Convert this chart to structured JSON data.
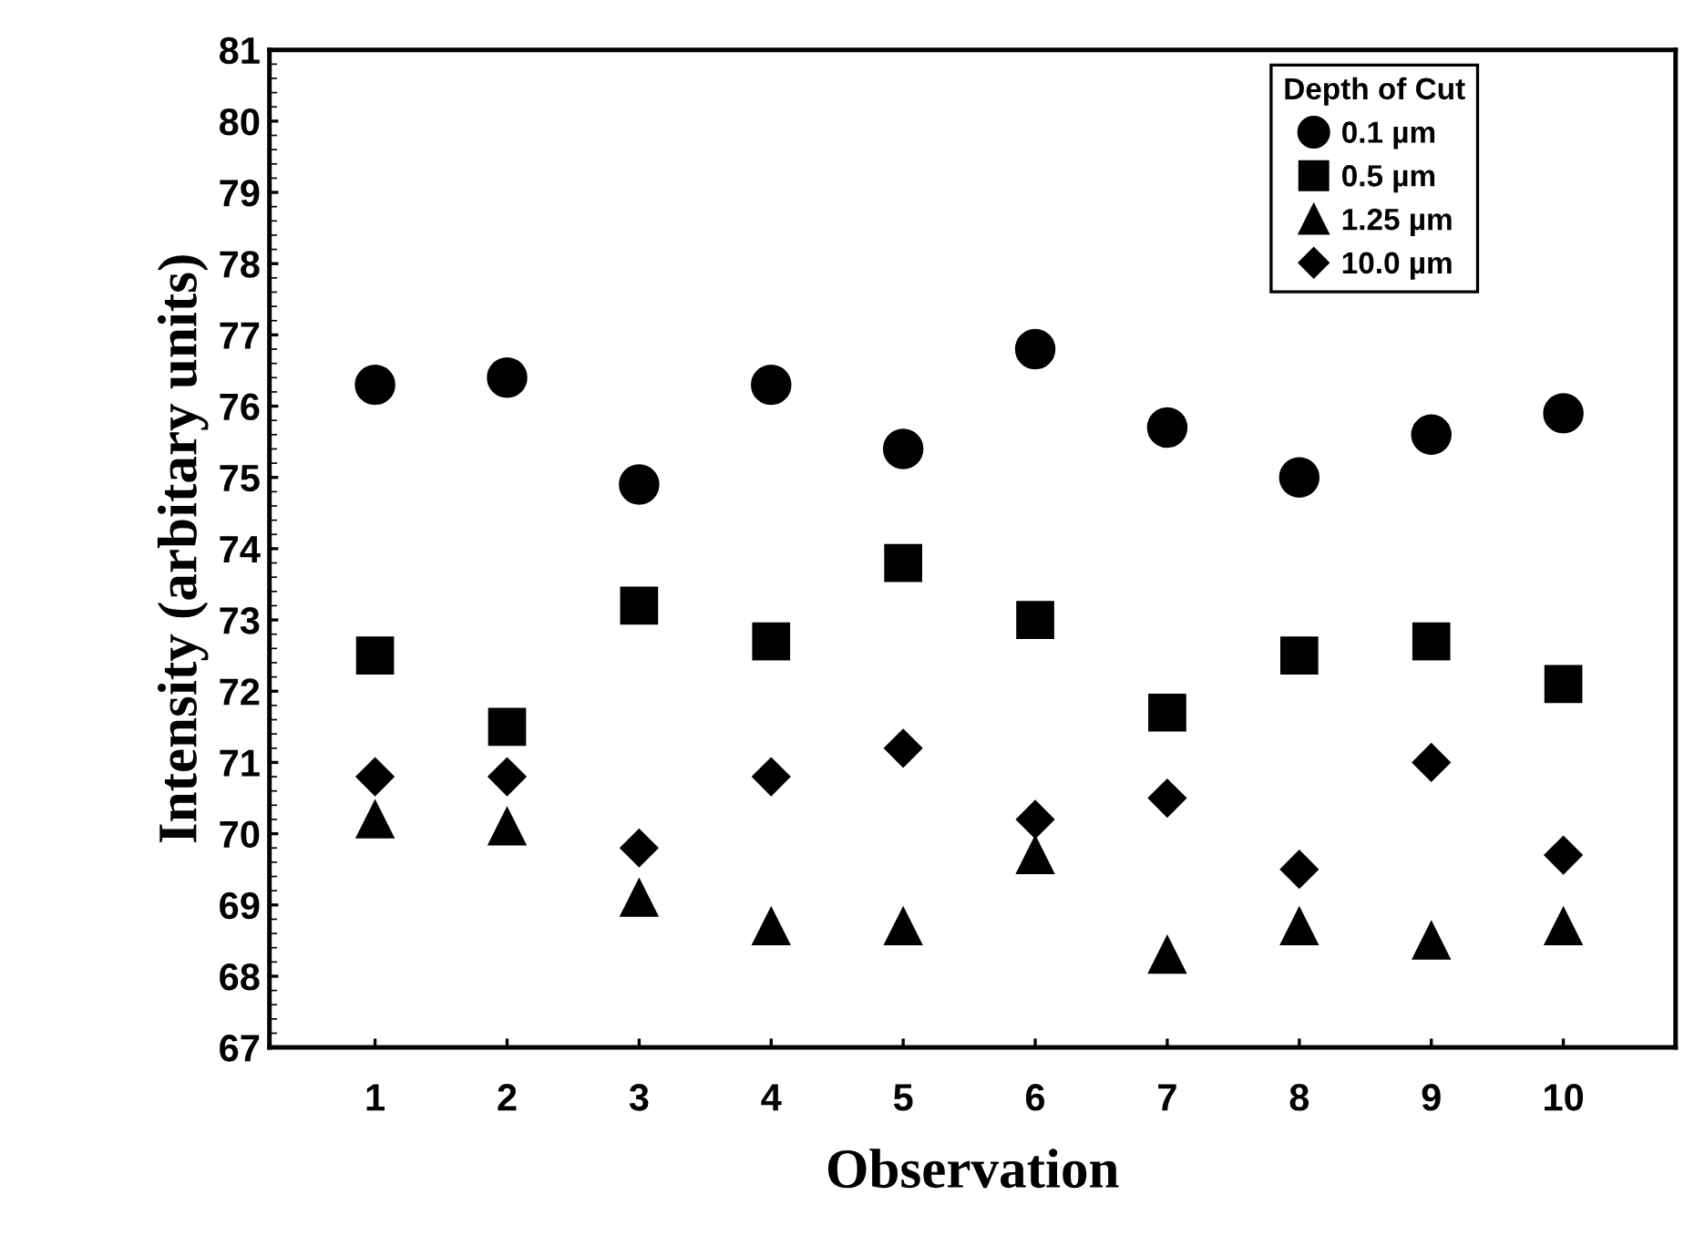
{
  "chart_data": {
    "type": "scatter",
    "xlabel": "Observation",
    "ylabel": "Intensity (arbitary units)",
    "legend_title": "Depth of Cut",
    "x": [
      1,
      2,
      3,
      4,
      5,
      6,
      7,
      8,
      9,
      10
    ],
    "xlim": [
      0.2,
      10.85
    ],
    "xticks": [
      1,
      2,
      3,
      4,
      5,
      6,
      7,
      8,
      9,
      10
    ],
    "ylim": [
      67,
      81
    ],
    "yticks": [
      67,
      68,
      69,
      70,
      71,
      72,
      73,
      74,
      75,
      76,
      77,
      78,
      79,
      80,
      81
    ],
    "grid": false,
    "legend": "top right",
    "series": [
      {
        "name": "0.1 µm",
        "color": "#000000",
        "marker": "circle",
        "values": [
          76.3,
          76.4,
          74.9,
          76.3,
          75.4,
          76.8,
          75.7,
          75.0,
          75.6,
          75.9
        ]
      },
      {
        "name": "0.5 µm",
        "color": "#000000",
        "marker": "square",
        "values": [
          72.5,
          71.5,
          73.2,
          72.7,
          73.8,
          73.0,
          71.7,
          72.5,
          72.7,
          72.1
        ]
      },
      {
        "name": "1.25 µm",
        "color": "#000000",
        "marker": "triangle",
        "values": [
          70.2,
          70.1,
          69.1,
          68.7,
          68.7,
          69.7,
          68.3,
          68.7,
          68.5,
          68.7
        ]
      },
      {
        "name": "10.0 µm",
        "color": "#000000",
        "marker": "diamond",
        "values": [
          70.8,
          70.8,
          69.8,
          70.8,
          71.2,
          70.2,
          70.5,
          69.5,
          71.0,
          69.7
        ]
      }
    ]
  }
}
